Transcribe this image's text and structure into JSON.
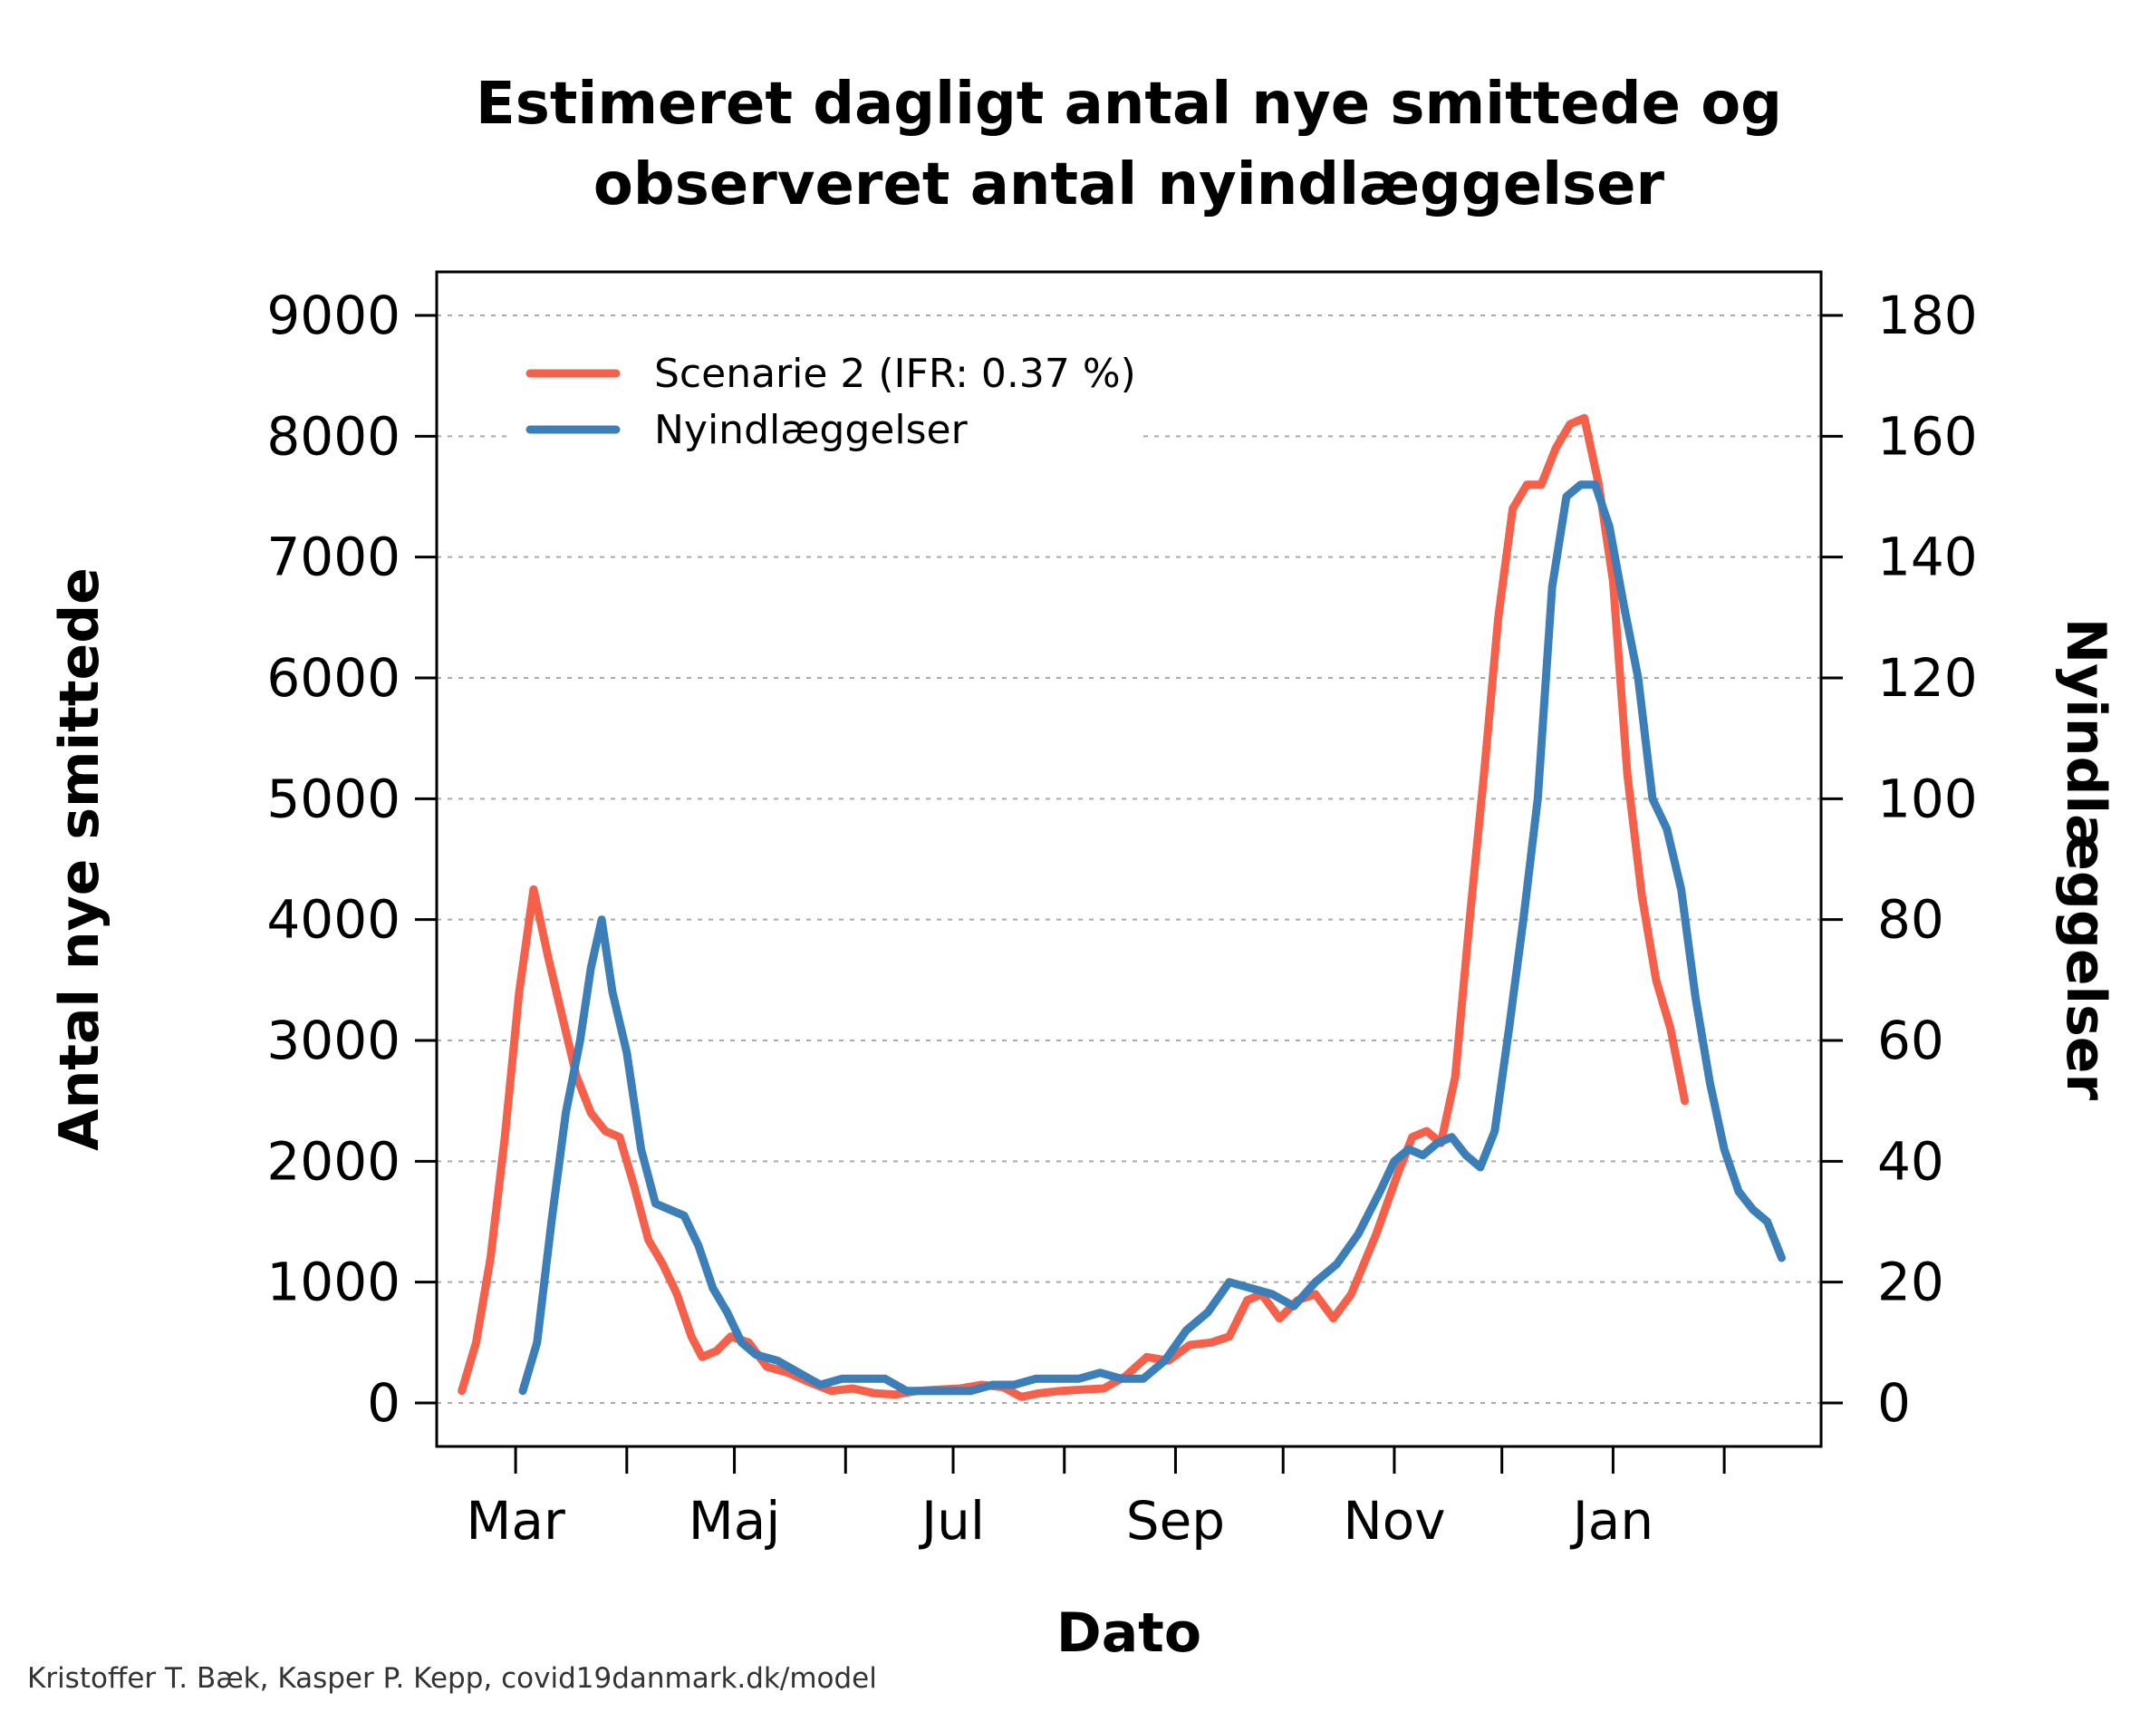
{
  "chart_data": {
    "type": "line",
    "title": [
      "Estimeret dagligt antal nye smittede og",
      "observeret antal nyindlæggelser"
    ],
    "xlabel": "Dato",
    "ylabel_left": "Antal nye smittede",
    "ylabel_right": "Nyindlæggelser",
    "credit": "Kristoffer T. Bæk, Kasper P. Kepp, covid19danmark.dk/model",
    "x_ticks": [
      "2020-03-01",
      "2020-04-01",
      "2020-05-01",
      "2020-06-01",
      "2020-07-01",
      "2020-08-01",
      "2020-09-01",
      "2020-10-01",
      "2020-11-01",
      "2020-12-01",
      "2021-01-01",
      "2021-02-01"
    ],
    "x_tick_labels": [
      {
        "date": "2020-03-01",
        "label": "Mar"
      },
      {
        "date": "2020-05-01",
        "label": "Maj"
      },
      {
        "date": "2020-07-01",
        "label": "Jul"
      },
      {
        "date": "2020-09-01",
        "label": "Sep"
      },
      {
        "date": "2020-11-01",
        "label": "Nov"
      },
      {
        "date": "2021-01-01",
        "label": "Jan"
      }
    ],
    "xlim": [
      "2020-02-08",
      "2021-02-28"
    ],
    "ylim_left": [
      -360,
      9360
    ],
    "yticks_left": [
      0,
      1000,
      2000,
      3000,
      4000,
      5000,
      6000,
      7000,
      8000,
      9000
    ],
    "ylim_right": [
      -7.2,
      187.2
    ],
    "yticks_right": [
      0,
      20,
      40,
      60,
      80,
      100,
      120,
      140,
      160,
      180
    ],
    "grid": "horizontal dotted",
    "legend_position": "top-left",
    "series": [
      {
        "name": "Scenarie 2 (IFR: 0.37 %)",
        "axis": "left",
        "color": "#f4604a",
        "points": [
          [
            "2020-02-15",
            100
          ],
          [
            "2020-02-19",
            500
          ],
          [
            "2020-02-23",
            1200
          ],
          [
            "2020-02-27",
            2200
          ],
          [
            "2020-03-02",
            3400
          ],
          [
            "2020-03-06",
            4250
          ],
          [
            "2020-03-10",
            3700
          ],
          [
            "2020-03-14",
            3200
          ],
          [
            "2020-03-18",
            2700
          ],
          [
            "2020-03-22",
            2400
          ],
          [
            "2020-03-26",
            2250
          ],
          [
            "2020-03-30",
            2200
          ],
          [
            "2020-04-03",
            1800
          ],
          [
            "2020-04-07",
            1350
          ],
          [
            "2020-04-11",
            1150
          ],
          [
            "2020-04-15",
            900
          ],
          [
            "2020-04-19",
            550
          ],
          [
            "2020-04-22",
            380
          ],
          [
            "2020-04-26",
            430
          ],
          [
            "2020-04-30",
            550
          ],
          [
            "2020-05-05",
            500
          ],
          [
            "2020-05-10",
            300
          ],
          [
            "2020-05-16",
            250
          ],
          [
            "2020-05-22",
            170
          ],
          [
            "2020-05-28",
            100
          ],
          [
            "2020-06-03",
            120
          ],
          [
            "2020-06-09",
            80
          ],
          [
            "2020-06-15",
            70
          ],
          [
            "2020-06-21",
            100
          ],
          [
            "2020-06-27",
            110
          ],
          [
            "2020-07-03",
            120
          ],
          [
            "2020-07-09",
            150
          ],
          [
            "2020-07-15",
            130
          ],
          [
            "2020-07-20",
            50
          ],
          [
            "2020-07-25",
            80
          ],
          [
            "2020-07-31",
            100
          ],
          [
            "2020-08-06",
            110
          ],
          [
            "2020-08-12",
            120
          ],
          [
            "2020-08-18",
            220
          ],
          [
            "2020-08-24",
            380
          ],
          [
            "2020-08-30",
            350
          ],
          [
            "2020-09-05",
            480
          ],
          [
            "2020-09-11",
            500
          ],
          [
            "2020-09-16",
            550
          ],
          [
            "2020-09-21",
            850
          ],
          [
            "2020-09-25",
            900
          ],
          [
            "2020-09-30",
            700
          ],
          [
            "2020-10-05",
            850
          ],
          [
            "2020-10-10",
            900
          ],
          [
            "2020-10-15",
            700
          ],
          [
            "2020-10-20",
            900
          ],
          [
            "2020-10-27",
            1400
          ],
          [
            "2020-11-02",
            1900
          ],
          [
            "2020-11-06",
            2200
          ],
          [
            "2020-11-10",
            2250
          ],
          [
            "2020-11-14",
            2150
          ],
          [
            "2020-11-18",
            2700
          ],
          [
            "2020-11-22",
            4000
          ],
          [
            "2020-11-26",
            5200
          ],
          [
            "2020-11-30",
            6500
          ],
          [
            "2020-12-04",
            7400
          ],
          [
            "2020-12-08",
            7600
          ],
          [
            "2020-12-12",
            7600
          ],
          [
            "2020-12-16",
            7900
          ],
          [
            "2020-12-20",
            8100
          ],
          [
            "2020-12-24",
            8150
          ],
          [
            "2020-12-28",
            7600
          ],
          [
            "2021-01-01",
            6800
          ],
          [
            "2021-01-05",
            5200
          ],
          [
            "2021-01-09",
            4200
          ],
          [
            "2021-01-13",
            3500
          ],
          [
            "2021-01-17",
            3100
          ],
          [
            "2021-01-21",
            2500
          ]
        ]
      },
      {
        "name": "Nyindlæggelser",
        "axis": "right",
        "color": "#3c7fb8",
        "points": [
          [
            "2020-03-03",
            2
          ],
          [
            "2020-03-07",
            10
          ],
          [
            "2020-03-11",
            30
          ],
          [
            "2020-03-15",
            48
          ],
          [
            "2020-03-19",
            60
          ],
          [
            "2020-03-22",
            72
          ],
          [
            "2020-03-25",
            80
          ],
          [
            "2020-03-28",
            68
          ],
          [
            "2020-04-01",
            58
          ],
          [
            "2020-04-05",
            42
          ],
          [
            "2020-04-09",
            33
          ],
          [
            "2020-04-13",
            32
          ],
          [
            "2020-04-17",
            31
          ],
          [
            "2020-04-21",
            26
          ],
          [
            "2020-04-25",
            19
          ],
          [
            "2020-04-29",
            15
          ],
          [
            "2020-05-03",
            10
          ],
          [
            "2020-05-07",
            8
          ],
          [
            "2020-05-13",
            7
          ],
          [
            "2020-05-19",
            5
          ],
          [
            "2020-05-25",
            3
          ],
          [
            "2020-05-31",
            4
          ],
          [
            "2020-06-06",
            4
          ],
          [
            "2020-06-12",
            4
          ],
          [
            "2020-06-18",
            2
          ],
          [
            "2020-06-24",
            2
          ],
          [
            "2020-06-30",
            2
          ],
          [
            "2020-07-06",
            2
          ],
          [
            "2020-07-12",
            3
          ],
          [
            "2020-07-18",
            3
          ],
          [
            "2020-07-24",
            4
          ],
          [
            "2020-07-30",
            4
          ],
          [
            "2020-08-05",
            4
          ],
          [
            "2020-08-11",
            5
          ],
          [
            "2020-08-17",
            4
          ],
          [
            "2020-08-23",
            4
          ],
          [
            "2020-08-29",
            7
          ],
          [
            "2020-09-04",
            12
          ],
          [
            "2020-09-10",
            15
          ],
          [
            "2020-09-16",
            20
          ],
          [
            "2020-09-22",
            19
          ],
          [
            "2020-09-28",
            18
          ],
          [
            "2020-10-04",
            16
          ],
          [
            "2020-10-10",
            20
          ],
          [
            "2020-10-16",
            23
          ],
          [
            "2020-10-22",
            28
          ],
          [
            "2020-10-28",
            35
          ],
          [
            "2020-11-01",
            40
          ],
          [
            "2020-11-05",
            42
          ],
          [
            "2020-11-09",
            41
          ],
          [
            "2020-11-13",
            43
          ],
          [
            "2020-11-17",
            44
          ],
          [
            "2020-11-21",
            41
          ],
          [
            "2020-11-25",
            39
          ],
          [
            "2020-11-29",
            45
          ],
          [
            "2020-12-03",
            62
          ],
          [
            "2020-12-07",
            80
          ],
          [
            "2020-12-11",
            100
          ],
          [
            "2020-12-15",
            135
          ],
          [
            "2020-12-19",
            150
          ],
          [
            "2020-12-23",
            152
          ],
          [
            "2020-12-27",
            152
          ],
          [
            "2020-12-31",
            145
          ],
          [
            "2021-01-04",
            132
          ],
          [
            "2021-01-08",
            120
          ],
          [
            "2021-01-12",
            100
          ],
          [
            "2021-01-16",
            95
          ],
          [
            "2021-01-20",
            85
          ],
          [
            "2021-01-24",
            67
          ],
          [
            "2021-01-28",
            53
          ],
          [
            "2021-02-01",
            42
          ],
          [
            "2021-02-05",
            35
          ],
          [
            "2021-02-09",
            32
          ],
          [
            "2021-02-13",
            30
          ],
          [
            "2021-02-17",
            24
          ]
        ]
      }
    ]
  }
}
